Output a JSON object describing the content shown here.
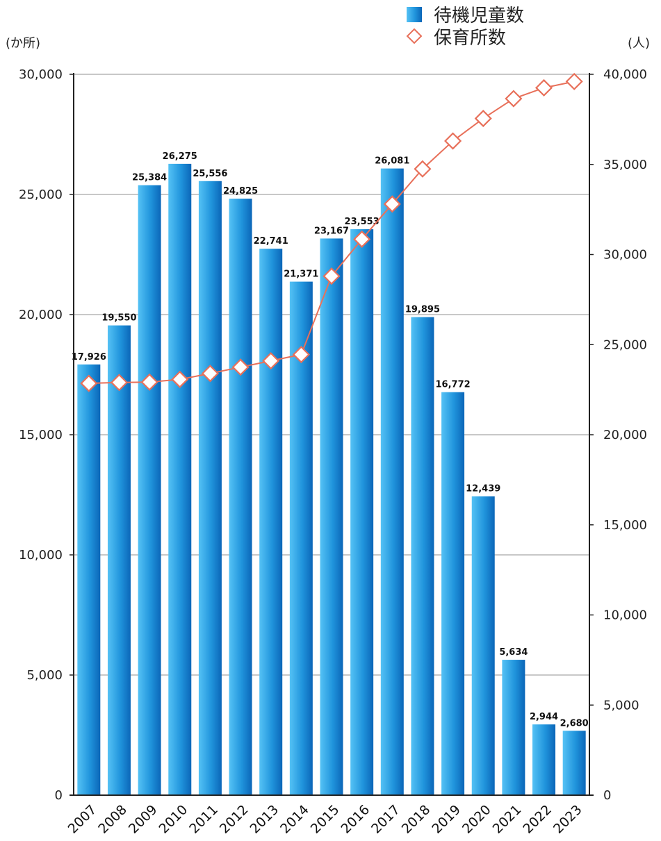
{
  "chart_data": {
    "type": "bar+line",
    "categories": [
      "2007",
      "2008",
      "2009",
      "2010",
      "2011",
      "2012",
      "2013",
      "2014",
      "2015",
      "2016",
      "2017",
      "2018",
      "2019",
      "2020",
      "2021",
      "2022",
      "2023"
    ],
    "series": [
      {
        "name": "待機児童数",
        "type": "bar",
        "axis": "left",
        "color": "#1e90e0",
        "values": [
          17926,
          19550,
          25384,
          26275,
          25556,
          24825,
          22741,
          21371,
          23167,
          23553,
          26081,
          19895,
          16772,
          12439,
          5634,
          2944,
          2680
        ],
        "labels": [
          "17,926",
          "19,550",
          "25,384",
          "26,275",
          "25,556",
          "24,825",
          "22,741",
          "21,371",
          "23,167",
          "23,553",
          "26,081",
          "19,895",
          "16,772",
          "12,439",
          "5,634",
          "2,944",
          "2,680"
        ]
      },
      {
        "name": "保育所数",
        "type": "line",
        "axis": "right",
        "color": "#e8705a",
        "marker": "diamond-open",
        "values": [
          22850,
          22900,
          22920,
          23070,
          23400,
          23750,
          24100,
          24450,
          28800,
          30850,
          32800,
          34750,
          36300,
          37550,
          38650,
          39250,
          39600
        ]
      }
    ],
    "left_axis": {
      "unit": "(か所)",
      "min": 0,
      "max": 30000,
      "ticks": [
        "0",
        "5,000",
        "10,000",
        "15,000",
        "20,000",
        "25,000",
        "30,000"
      ]
    },
    "right_axis": {
      "unit": "(人)",
      "min": 0,
      "max": 40000,
      "ticks": [
        "0",
        "5,000",
        "10,000",
        "15,000",
        "20,000",
        "25,000",
        "30,000",
        "35,000",
        "40,000"
      ]
    },
    "grid": true,
    "legend_position": "top-right"
  }
}
